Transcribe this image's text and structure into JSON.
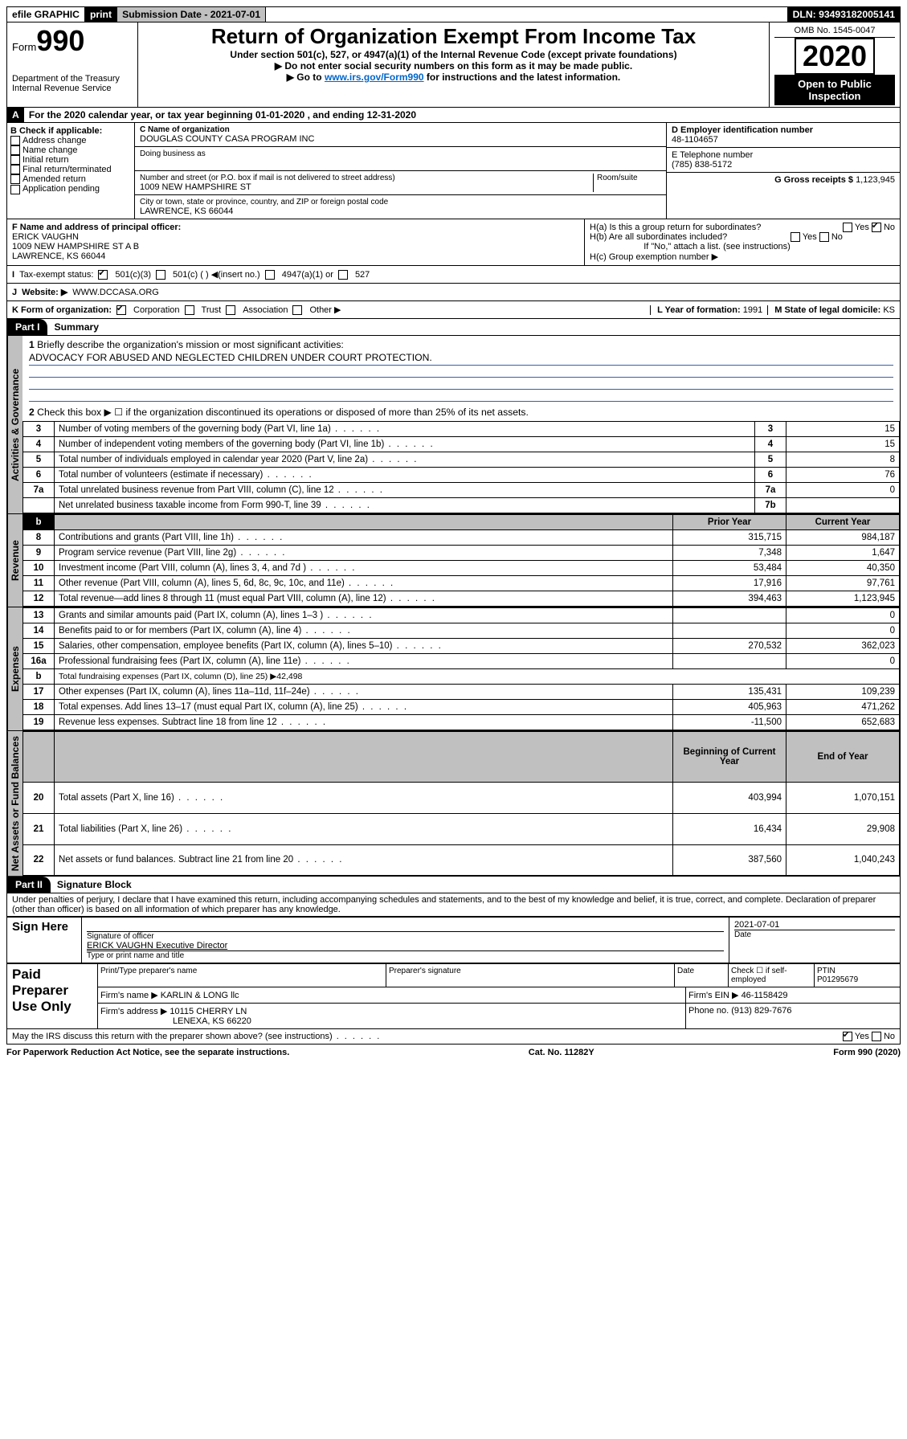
{
  "topbar": {
    "efile": "efile GRAPHIC",
    "print": "print",
    "submission": "Submission Date - 2021-07-01",
    "dln": "DLN: 93493182005141"
  },
  "header": {
    "form_prefix": "Form",
    "form_num": "990",
    "dept1": "Department of the Treasury",
    "dept2": "Internal Revenue Service",
    "title": "Return of Organization Exempt From Income Tax",
    "sub1": "Under section 501(c), 527, or 4947(a)(1) of the Internal Revenue Code (except private foundations)",
    "sub2": "Do not enter social security numbers on this form as it may be made public.",
    "sub3a": "Go to ",
    "sub3link": "www.irs.gov/Form990",
    "sub3b": " for instructions and the latest information.",
    "omb": "OMB No. 1545-0047",
    "year": "2020",
    "open": "Open to Public Inspection"
  },
  "A": {
    "prefix": "A",
    "text": "For the 2020 calendar year, or tax year beginning 01-01-2020   , and ending 12-31-2020"
  },
  "B": {
    "label": "B Check if applicable:",
    "opts": [
      "Address change",
      "Name change",
      "Initial return",
      "Final return/terminated",
      "Amended return",
      "Application pending"
    ]
  },
  "C": {
    "name_lbl": "C Name of organization",
    "name": "DOUGLAS COUNTY CASA PROGRAM INC",
    "dba_lbl": "Doing business as",
    "addr_lbl": "Number and street (or P.O. box if mail is not delivered to street address)",
    "room_lbl": "Room/suite",
    "addr": "1009 NEW HAMPSHIRE ST",
    "city_lbl": "City or town, state or province, country, and ZIP or foreign postal code",
    "city": "LAWRENCE, KS  66044"
  },
  "D": {
    "lbl": "D Employer identification number",
    "val": "48-1104657"
  },
  "E": {
    "lbl": "E Telephone number",
    "val": "(785) 838-5172"
  },
  "G": {
    "lbl": "G Gross receipts $",
    "val": "1,123,945"
  },
  "F": {
    "lbl": "F  Name and address of principal officer:",
    "name": "ERICK VAUGHN",
    "addr": "1009 NEW HAMPSHIRE ST A B",
    "city": "LAWRENCE, KS  66044"
  },
  "H": {
    "a": "H(a)  Is this a group return for subordinates?",
    "b": "H(b)  Are all subordinates included?",
    "b2": "If \"No,\" attach a list. (see instructions)",
    "c": "H(c)  Group exemption number ▶",
    "yes": "Yes",
    "no": "No"
  },
  "I": {
    "lbl": "I",
    "txt": "Tax-exempt status:",
    "o1": "501(c)(3)",
    "o2": "501(c) (  ) ◀(insert no.)",
    "o3": "4947(a)(1) or",
    "o4": "527"
  },
  "J": {
    "lbl": "J",
    "txt": "Website: ▶",
    "val": "WWW.DCCASA.ORG"
  },
  "K": {
    "lbl": "K Form of organization:",
    "o1": "Corporation",
    "o2": "Trust",
    "o3": "Association",
    "o4": "Other ▶"
  },
  "L": {
    "lbl": "L Year of formation:",
    "val": "1991"
  },
  "M": {
    "lbl": "M State of legal domicile:",
    "val": "KS"
  },
  "part1": {
    "hdr": "Part I",
    "title": "Summary"
  },
  "summary": {
    "q1": "Briefly describe the organization's mission or most significant activities:",
    "q1a": "ADVOCACY FOR ABUSED AND NEGLECTED CHILDREN UNDER COURT PROTECTION.",
    "q2": "Check this box ▶ ☐  if the organization discontinued its operations or disposed of more than 25% of its net assets.",
    "rows_ag": [
      {
        "n": "3",
        "t": "Number of voting members of the governing body (Part VI, line 1a)",
        "rn": "3",
        "v": "15"
      },
      {
        "n": "4",
        "t": "Number of independent voting members of the governing body (Part VI, line 1b)",
        "rn": "4",
        "v": "15"
      },
      {
        "n": "5",
        "t": "Total number of individuals employed in calendar year 2020 (Part V, line 2a)",
        "rn": "5",
        "v": "8"
      },
      {
        "n": "6",
        "t": "Total number of volunteers (estimate if necessary)",
        "rn": "6",
        "v": "76"
      },
      {
        "n": "7a",
        "t": "Total unrelated business revenue from Part VIII, column (C), line 12",
        "rn": "7a",
        "v": "0"
      },
      {
        "n": "",
        "t": "Net unrelated business taxable income from Form 990-T, line 39",
        "rn": "7b",
        "v": ""
      }
    ],
    "hdr_prior": "Prior Year",
    "hdr_curr": "Current Year",
    "vtab_ag": "Activities & Governance",
    "vtab_rev": "Revenue",
    "vtab_exp": "Expenses",
    "vtab_net": "Net Assets or Fund Balances",
    "rows_rev": [
      {
        "n": "8",
        "t": "Contributions and grants (Part VIII, line 1h)",
        "p": "315,715",
        "c": "984,187"
      },
      {
        "n": "9",
        "t": "Program service revenue (Part VIII, line 2g)",
        "p": "7,348",
        "c": "1,647"
      },
      {
        "n": "10",
        "t": "Investment income (Part VIII, column (A), lines 3, 4, and 7d )",
        "p": "53,484",
        "c": "40,350"
      },
      {
        "n": "11",
        "t": "Other revenue (Part VIII, column (A), lines 5, 6d, 8c, 9c, 10c, and 11e)",
        "p": "17,916",
        "c": "97,761"
      },
      {
        "n": "12",
        "t": "Total revenue—add lines 8 through 11 (must equal Part VIII, column (A), line 12)",
        "p": "394,463",
        "c": "1,123,945"
      }
    ],
    "rows_exp": [
      {
        "n": "13",
        "t": "Grants and similar amounts paid (Part IX, column (A), lines 1–3 )",
        "p": "",
        "c": "0"
      },
      {
        "n": "14",
        "t": "Benefits paid to or for members (Part IX, column (A), line 4)",
        "p": "",
        "c": "0"
      },
      {
        "n": "15",
        "t": "Salaries, other compensation, employee benefits (Part IX, column (A), lines 5–10)",
        "p": "270,532",
        "c": "362,023"
      },
      {
        "n": "16a",
        "t": "Professional fundraising fees (Part IX, column (A), line 11e)",
        "p": "",
        "c": "0"
      },
      {
        "n": "b",
        "t": "Total fundraising expenses (Part IX, column (D), line 25) ▶42,498",
        "p": null,
        "c": null
      },
      {
        "n": "17",
        "t": "Other expenses (Part IX, column (A), lines 11a–11d, 11f–24e)",
        "p": "135,431",
        "c": "109,239"
      },
      {
        "n": "18",
        "t": "Total expenses. Add lines 13–17 (must equal Part IX, column (A), line 25)",
        "p": "405,963",
        "c": "471,262"
      },
      {
        "n": "19",
        "t": "Revenue less expenses. Subtract line 18 from line 12",
        "p": "-11,500",
        "c": "652,683"
      }
    ],
    "hdr_beg": "Beginning of Current Year",
    "hdr_end": "End of Year",
    "rows_net": [
      {
        "n": "20",
        "t": "Total assets (Part X, line 16)",
        "p": "403,994",
        "c": "1,070,151"
      },
      {
        "n": "21",
        "t": "Total liabilities (Part X, line 26)",
        "p": "16,434",
        "c": "29,908"
      },
      {
        "n": "22",
        "t": "Net assets or fund balances. Subtract line 21 from line 20",
        "p": "387,560",
        "c": "1,040,243"
      }
    ]
  },
  "part2": {
    "hdr": "Part II",
    "title": "Signature Block"
  },
  "perjury": "Under penalties of perjury, I declare that I have examined this return, including accompanying schedules and statements, and to the best of my knowledge and belief, it is true, correct, and complete. Declaration of preparer (other than officer) is based on all information of which preparer has any knowledge.",
  "sign": {
    "here": "Sign Here",
    "sig_lbl": "Signature of officer",
    "date": "2021-07-01",
    "date_lbl": "Date",
    "name": "ERICK VAUGHN  Executive Director",
    "name_lbl": "Type or print name and title"
  },
  "paid": {
    "title": "Paid Preparer Use Only",
    "h1": "Print/Type preparer's name",
    "h2": "Preparer's signature",
    "h3": "Date",
    "h4": "Check ☐ if self-employed",
    "h5": "PTIN",
    "ptin": "P01295679",
    "firm_lbl": "Firm's name   ▶",
    "firm": "KARLIN & LONG llc",
    "ein_lbl": "Firm's EIN ▶",
    "ein": "46-1158429",
    "addr_lbl": "Firm's address ▶",
    "addr": "10115 CHERRY LN",
    "city": "LENEXA, KS  66220",
    "phone_lbl": "Phone no.",
    "phone": "(913) 829-7676"
  },
  "discuss": "May the IRS discuss this return with the preparer shown above? (see instructions)",
  "foot": {
    "l": "For Paperwork Reduction Act Notice, see the separate instructions.",
    "m": "Cat. No. 11282Y",
    "r": "Form 990 (2020)"
  }
}
